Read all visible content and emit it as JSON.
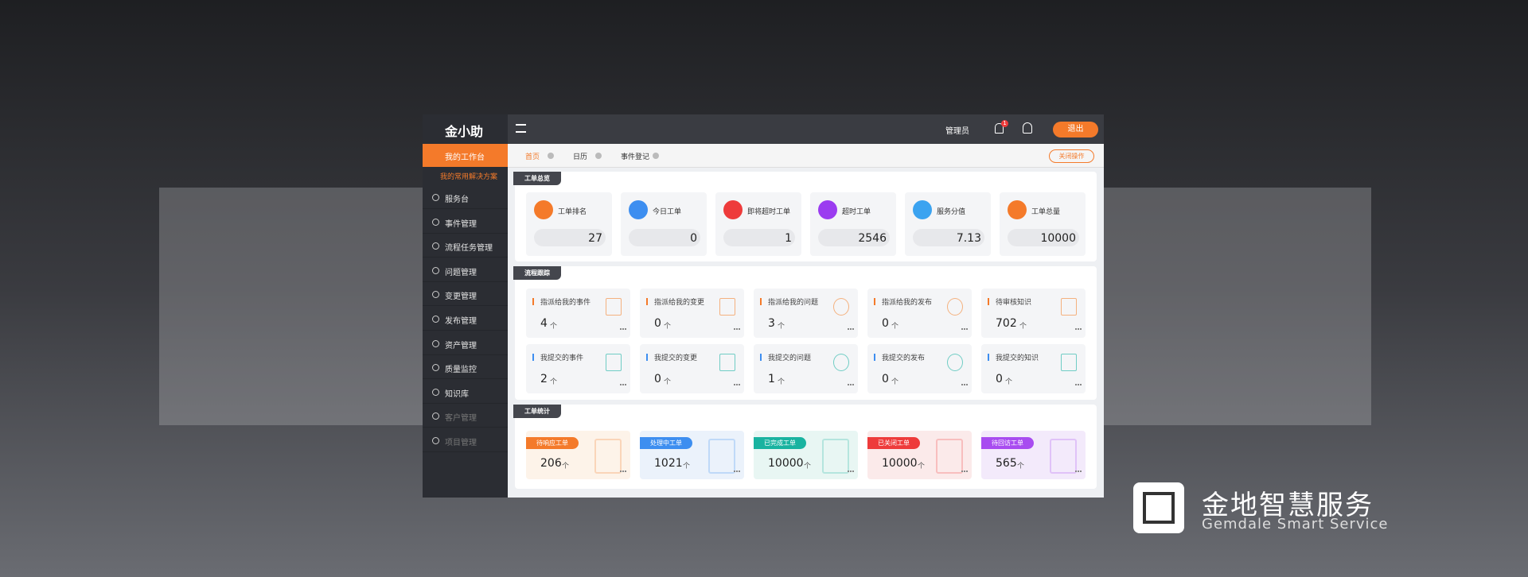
{
  "sidebar": {
    "logo": "金小助",
    "active": "我的工作台",
    "submenu": "我的常用解决方案",
    "menu": [
      "服务台",
      "事件管理",
      "流程任务管理",
      "问题管理",
      "变更管理",
      "发布管理",
      "资产管理",
      "质量监控",
      "知识库",
      "客户管理",
      "项目管理"
    ]
  },
  "header": {
    "user": "管理员",
    "notifications": 1,
    "logout": "退出"
  },
  "tabs": {
    "items": [
      "首页",
      "日历",
      "事件登记"
    ],
    "close": "关闭操作"
  },
  "overview": {
    "title": "工单总览",
    "items": [
      {
        "label": "工单排名",
        "value": 27,
        "color": "#f47a2a"
      },
      {
        "label": "今日工单",
        "value": 0,
        "color": "#3d8ef0"
      },
      {
        "label": "即将超时工单",
        "value": 1,
        "color": "#ee3b3b"
      },
      {
        "label": "超时工单",
        "value": 2546,
        "color": "#9b3cf0"
      },
      {
        "label": "服务分值",
        "value": 7.13,
        "color": "#3ba3f0"
      },
      {
        "label": "工单总量",
        "value": 10000,
        "color": "#f47a2a"
      }
    ]
  },
  "tracking": {
    "title": "流程跟踪",
    "unit": "个",
    "items": [
      {
        "label": "指派给我的事件",
        "value": 4,
        "color": "#f4a060"
      },
      {
        "label": "指派给我的变更",
        "value": 0,
        "color": "#f4a060"
      },
      {
        "label": "指派给我的问题",
        "value": 3,
        "color": "#f4a060"
      },
      {
        "label": "指派给我的发布",
        "value": 0,
        "color": "#f4a060"
      },
      {
        "label": "待审核知识",
        "value": 702,
        "color": "#f4a060"
      },
      {
        "label": "我提交的事件",
        "value": 2,
        "color": "#4fc3b8"
      },
      {
        "label": "我提交的变更",
        "value": 0,
        "color": "#4fc3b8"
      },
      {
        "label": "我提交的问题",
        "value": 1,
        "color": "#4fc3b8"
      },
      {
        "label": "我提交的发布",
        "value": 0,
        "color": "#4fc3b8"
      },
      {
        "label": "我提交的知识",
        "value": 0,
        "color": "#4fc3b8"
      }
    ]
  },
  "statistics": {
    "title": "工单统计",
    "unit": "个",
    "items": [
      {
        "label": "待响应工单",
        "value": 206,
        "color": "#f47a2a",
        "bg": "#fdf3e9"
      },
      {
        "label": "处理中工单",
        "value": 1021,
        "color": "#3d8ef0",
        "bg": "#ebf2fb"
      },
      {
        "label": "已完成工单",
        "value": 10000,
        "color": "#19b3a0",
        "bg": "#e8f6f3"
      },
      {
        "label": "已关闭工单",
        "value": 10000,
        "color": "#ee3b3b",
        "bg": "#fbeaea"
      },
      {
        "label": "待回访工单",
        "value": 565,
        "color": "#a84cf0",
        "bg": "#f3eafb"
      }
    ]
  },
  "brand": {
    "name": "金地智慧服务",
    "slogan": "Gemdale Smart Service"
  }
}
